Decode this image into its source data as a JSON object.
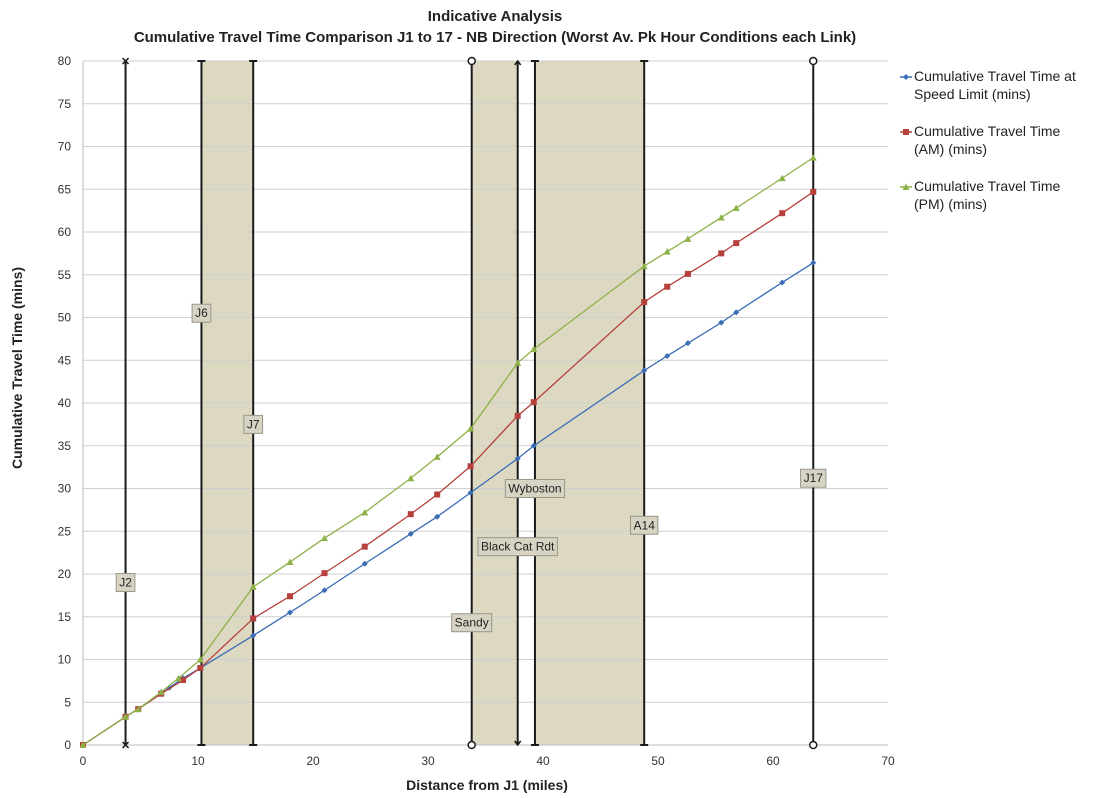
{
  "chart_data": {
    "type": "line",
    "title": "Indicative Analysis",
    "subtitle": "Cumulative Travel Time Comparison J1 to 17 - NB  Direction (Worst Av. Pk Hour Conditions each Link)",
    "xlabel": "Distance from J1 (miles)",
    "ylabel": "Cumulative Travel Time (mins)",
    "xlim": [
      0,
      70
    ],
    "ylim": [
      0,
      80
    ],
    "x_ticks": [
      0,
      10,
      20,
      30,
      40,
      50,
      60,
      70
    ],
    "y_ticks": [
      0,
      5,
      10,
      15,
      20,
      25,
      30,
      35,
      40,
      45,
      50,
      55,
      60,
      65,
      70,
      75,
      80
    ],
    "grid": "horizontal",
    "legend_position": "right",
    "series": [
      {
        "name": "Cumulative Travel Time at Speed Limit (mins)",
        "color": "#3a6db5",
        "marker": "diamond",
        "points": [
          [
            0,
            0
          ],
          [
            3.7,
            3.3
          ],
          [
            4.8,
            4.2
          ],
          [
            6.8,
            6.0
          ],
          [
            7.5,
            6.7
          ],
          [
            8.7,
            7.8
          ],
          [
            10.2,
            9.0
          ],
          [
            14.8,
            12.8
          ],
          [
            18,
            15.5
          ],
          [
            21,
            18.1
          ],
          [
            24.5,
            21.2
          ],
          [
            28.5,
            24.7
          ],
          [
            30.8,
            26.7
          ],
          [
            33.7,
            29.5
          ],
          [
            37.8,
            33.5
          ],
          [
            39.2,
            35.0
          ],
          [
            48.8,
            43.8
          ],
          [
            50.8,
            45.5
          ],
          [
            52.6,
            47.0
          ],
          [
            55.5,
            49.4
          ],
          [
            56.8,
            50.6
          ],
          [
            60.8,
            54.1
          ],
          [
            63.5,
            56.4
          ]
        ]
      },
      {
        "name": "Cumulative Travel Time (AM) (mins)",
        "color": "#b5403c",
        "marker": "square",
        "points": [
          [
            0,
            0
          ],
          [
            3.7,
            3.3
          ],
          [
            4.8,
            4.2
          ],
          [
            6.8,
            6.0
          ],
          [
            8.7,
            7.6
          ],
          [
            10.2,
            9.0
          ],
          [
            14.8,
            14.8
          ],
          [
            18,
            17.4
          ],
          [
            21,
            20.1
          ],
          [
            24.5,
            23.2
          ],
          [
            28.5,
            27.0
          ],
          [
            30.8,
            29.3
          ],
          [
            33.7,
            32.6
          ],
          [
            37.8,
            38.5
          ],
          [
            39.2,
            40.1
          ],
          [
            48.8,
            51.8
          ],
          [
            50.8,
            53.6
          ],
          [
            52.6,
            55.1
          ],
          [
            55.5,
            57.5
          ],
          [
            56.8,
            58.7
          ],
          [
            60.8,
            62.2
          ],
          [
            63.5,
            64.7
          ]
        ]
      },
      {
        "name": "Cumulative Travel Time (PM) (mins)",
        "color": "#8db247",
        "marker": "triangle",
        "points": [
          [
            0,
            0
          ],
          [
            3.7,
            3.3
          ],
          [
            4.8,
            4.2
          ],
          [
            6.8,
            6.2
          ],
          [
            8.3,
            7.8
          ],
          [
            10.2,
            10.0
          ],
          [
            14.8,
            18.5
          ],
          [
            18,
            21.4
          ],
          [
            21,
            24.2
          ],
          [
            24.5,
            27.2
          ],
          [
            28.5,
            31.2
          ],
          [
            30.8,
            33.7
          ],
          [
            33.7,
            37.0
          ],
          [
            37.8,
            44.7
          ],
          [
            39.2,
            46.3
          ],
          [
            48.8,
            56.0
          ],
          [
            50.8,
            57.7
          ],
          [
            52.6,
            59.2
          ],
          [
            55.5,
            61.7
          ],
          [
            56.8,
            62.8
          ],
          [
            60.8,
            66.3
          ],
          [
            63.5,
            68.7
          ]
        ]
      }
    ],
    "shaded_bands": [
      {
        "x_start": 10.3,
        "x_end": 14.8
      },
      {
        "x_start": 33.8,
        "x_end": 37.8
      },
      {
        "x_start": 39.3,
        "x_end": 48.8
      }
    ],
    "vertical_markers": [
      {
        "x": 3.7,
        "label": "J2",
        "label_y": 19,
        "end": "cross"
      },
      {
        "x": 10.3,
        "label": "J6",
        "label_y": 50.5,
        "end": "dash"
      },
      {
        "x": 14.8,
        "label": "J7",
        "label_y": 37.5,
        "end": "dash"
      },
      {
        "x": 33.8,
        "label": "Sandy",
        "label_y": 14.3,
        "end": "circle"
      },
      {
        "x": 37.8,
        "label": "Black Cat Rdt",
        "label_y": 23.2,
        "end": "arrow"
      },
      {
        "x": 39.3,
        "label": "Wyboston",
        "label_y": 30.0,
        "end": "dash"
      },
      {
        "x": 48.8,
        "label": "A14",
        "label_y": 25.7,
        "end": "dash"
      },
      {
        "x": 63.5,
        "label": "J17",
        "label_y": 31.2,
        "end": "circle"
      }
    ]
  }
}
